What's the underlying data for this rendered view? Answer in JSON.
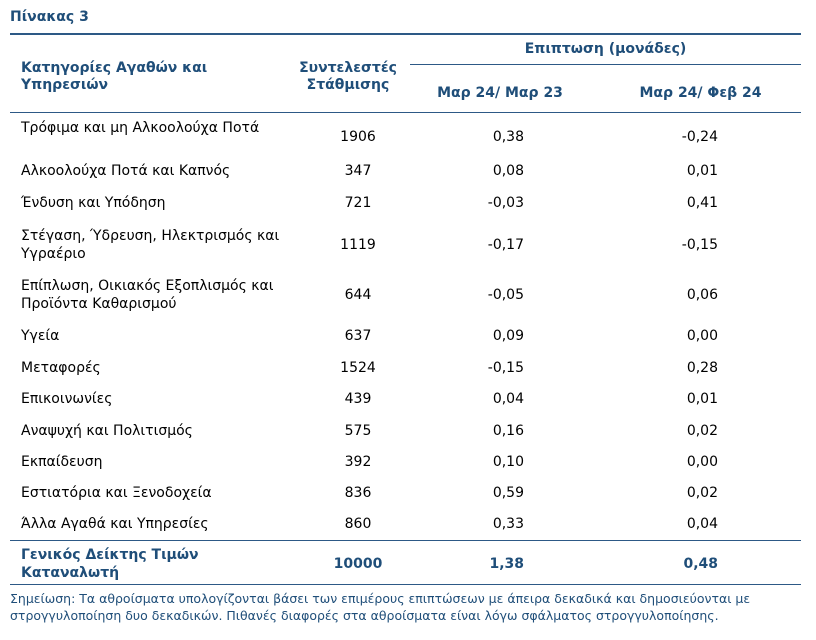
{
  "title": "Πίνακας 3",
  "header": {
    "category": "Κατηγορίες Αγαθών και Υπηρεσιών",
    "weight": "Συντελεστές Στάθμισης",
    "impact_group": "Επιπτωση (μονάδες)",
    "col_a": "Μαρ 24/ Μαρ 23",
    "col_b": "Μαρ 24/ Φεβ 24"
  },
  "rows": [
    {
      "name": "Τρόφιμα και μη Αλκοολούχα Ποτά",
      "weight": "1906",
      "a": "0,38",
      "b": "-0,24"
    },
    {
      "name": "Αλκοολούχα Ποτά και Καπνός",
      "weight": "347",
      "a": "0,08",
      "b": "0,01"
    },
    {
      "name": "Ένδυση και Υπόδηση",
      "weight": "721",
      "a": "-0,03",
      "b": "0,41"
    },
    {
      "name": "Στέγαση, Ύδρευση, Ηλεκτρισμός και Υγραέριο",
      "weight": "1119",
      "a": "-0,17",
      "b": "-0,15"
    },
    {
      "name": "Επίπλωση, Οικιακός Εξοπλισμός και Προϊόντα Καθαρισμού",
      "weight": "644",
      "a": "-0,05",
      "b": "0,06"
    },
    {
      "name": "Υγεία",
      "weight": "637",
      "a": "0,09",
      "b": "0,00"
    },
    {
      "name": "Μεταφορές",
      "weight": "1524",
      "a": "-0,15",
      "b": "0,28"
    },
    {
      "name": "Επικοινωνίες",
      "weight": "439",
      "a": "0,04",
      "b": "0,01"
    },
    {
      "name": "Αναψυχή και Πολιτισμός",
      "weight": "575",
      "a": "0,16",
      "b": "0,02"
    },
    {
      "name": "Εκπαίδευση",
      "weight": "392",
      "a": "0,10",
      "b": "0,00"
    },
    {
      "name": "Εστιατόρια και Ξενοδοχεία",
      "weight": "836",
      "a": "0,59",
      "b": "0,02"
    },
    {
      "name": "Άλλα Αγαθά και Υπηρεσίες",
      "weight": "860",
      "a": "0,33",
      "b": "0,04"
    }
  ],
  "total": {
    "name": "Γενικός Δείκτης Τιμών Καταναλωτή",
    "weight": "10000",
    "a": "1,38",
    "b": "0,48"
  },
  "note": "Σημείωση: Τα αθροίσματα υπολογίζονται βάσει των επιμέρους επιπτώσεων με άπειρα δεκαδικά και δημοσιεύονται με στρογγυλοποίηση δυο δεκαδικών. Πιθανές διαφορές στα αθροίσματα είναι λόγω σφάλματος στρογγυλοποίησης.",
  "colors": {
    "header_text": "#1f4e79",
    "rule": "#2d5986"
  }
}
